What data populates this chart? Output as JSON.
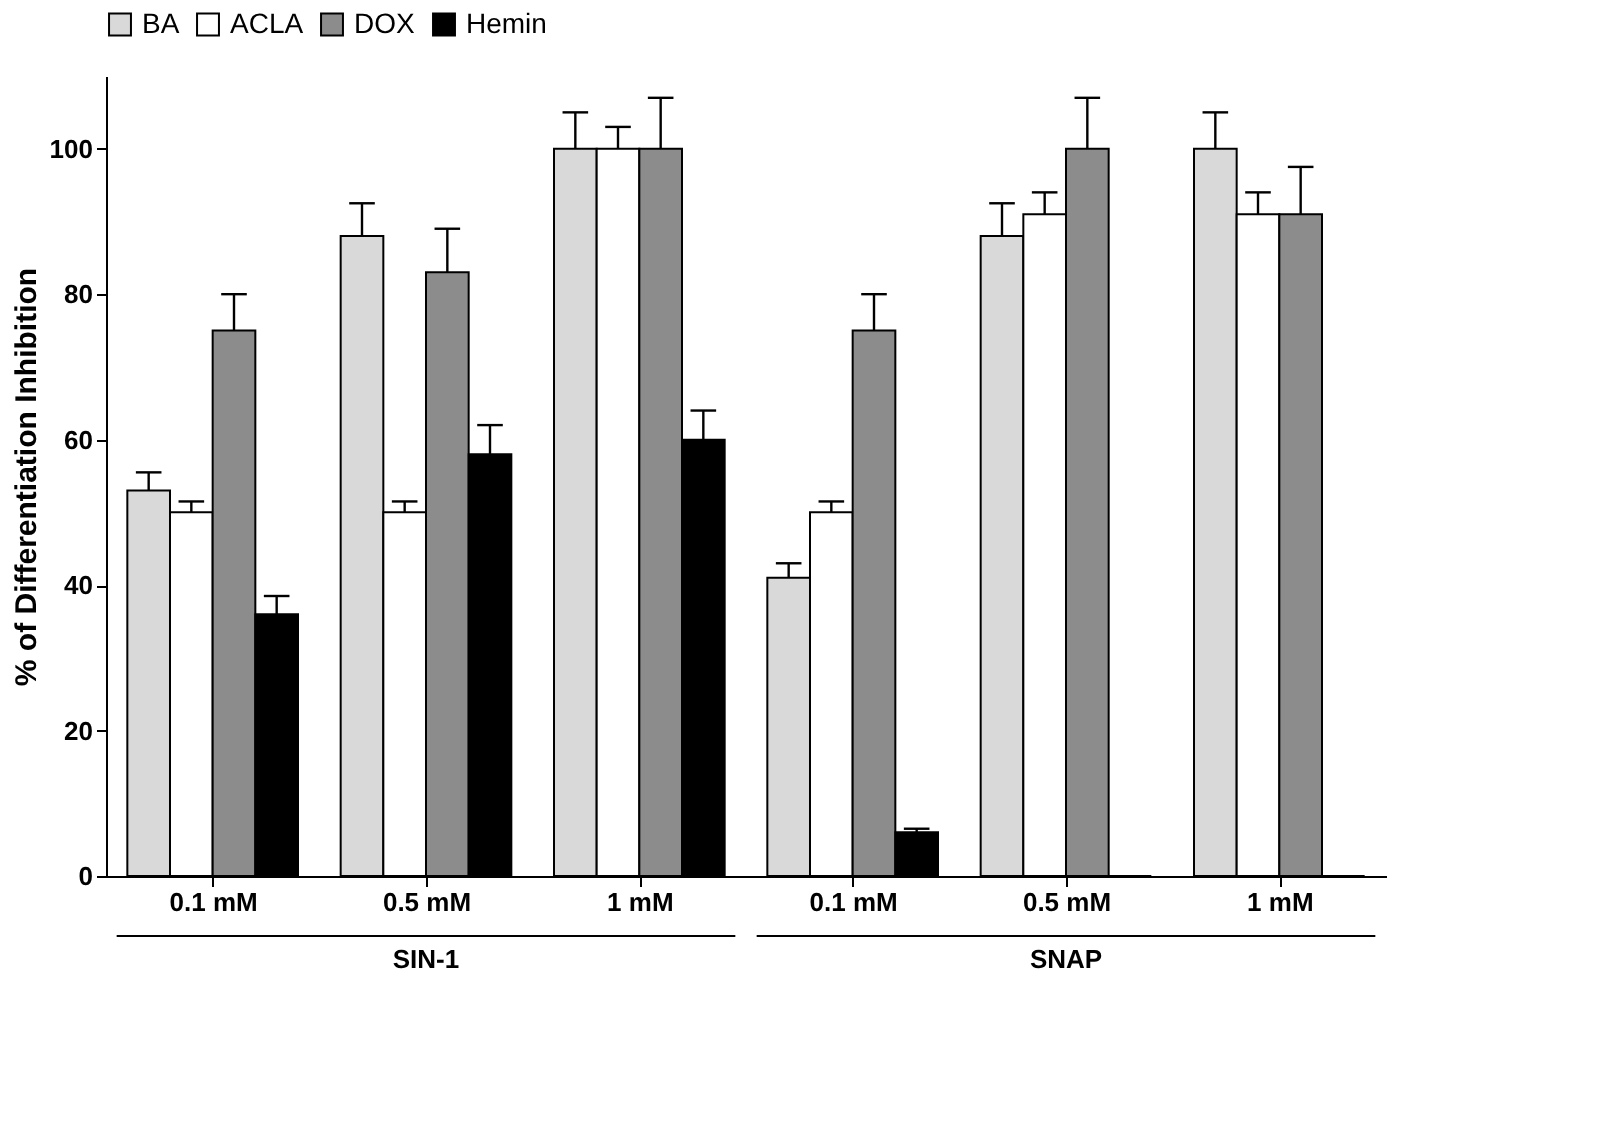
{
  "chart_data": {
    "type": "bar",
    "ylabel": "% of Differentiation Inhibition",
    "categories": [
      "0.1 mM",
      "0.5 mM",
      "1 mM",
      "0.1 mM",
      "0.5 mM",
      "1 mM"
    ],
    "series": [
      {
        "name": "BA",
        "color": "#d9d9d9",
        "values": [
          53,
          88,
          100,
          41,
          88,
          100
        ],
        "errors": [
          2.5,
          4.5,
          5,
          2,
          4.5,
          5
        ]
      },
      {
        "name": "ACLA",
        "color": "#ffffff",
        "values": [
          50,
          50,
          100,
          50,
          91,
          91
        ],
        "errors": [
          1.5,
          1.5,
          3,
          1.5,
          3,
          3
        ]
      },
      {
        "name": "DOX",
        "color": "#8c8c8c",
        "values": [
          75,
          83,
          100,
          75,
          100,
          91
        ],
        "errors": [
          5,
          6,
          7,
          5,
          7,
          6.5
        ]
      },
      {
        "name": "Hemin",
        "color": "#000000",
        "values": [
          36,
          58,
          60,
          6,
          0,
          0
        ],
        "errors": [
          2.5,
          4,
          4,
          0.5,
          null,
          null
        ]
      }
    ],
    "annotations": [
      "SIN-1",
      "SNAP"
    ],
    "ylim": [
      0,
      110
    ],
    "yticks": [
      0,
      20,
      40,
      60,
      80,
      100
    ],
    "legend": "top",
    "grid": false
  }
}
